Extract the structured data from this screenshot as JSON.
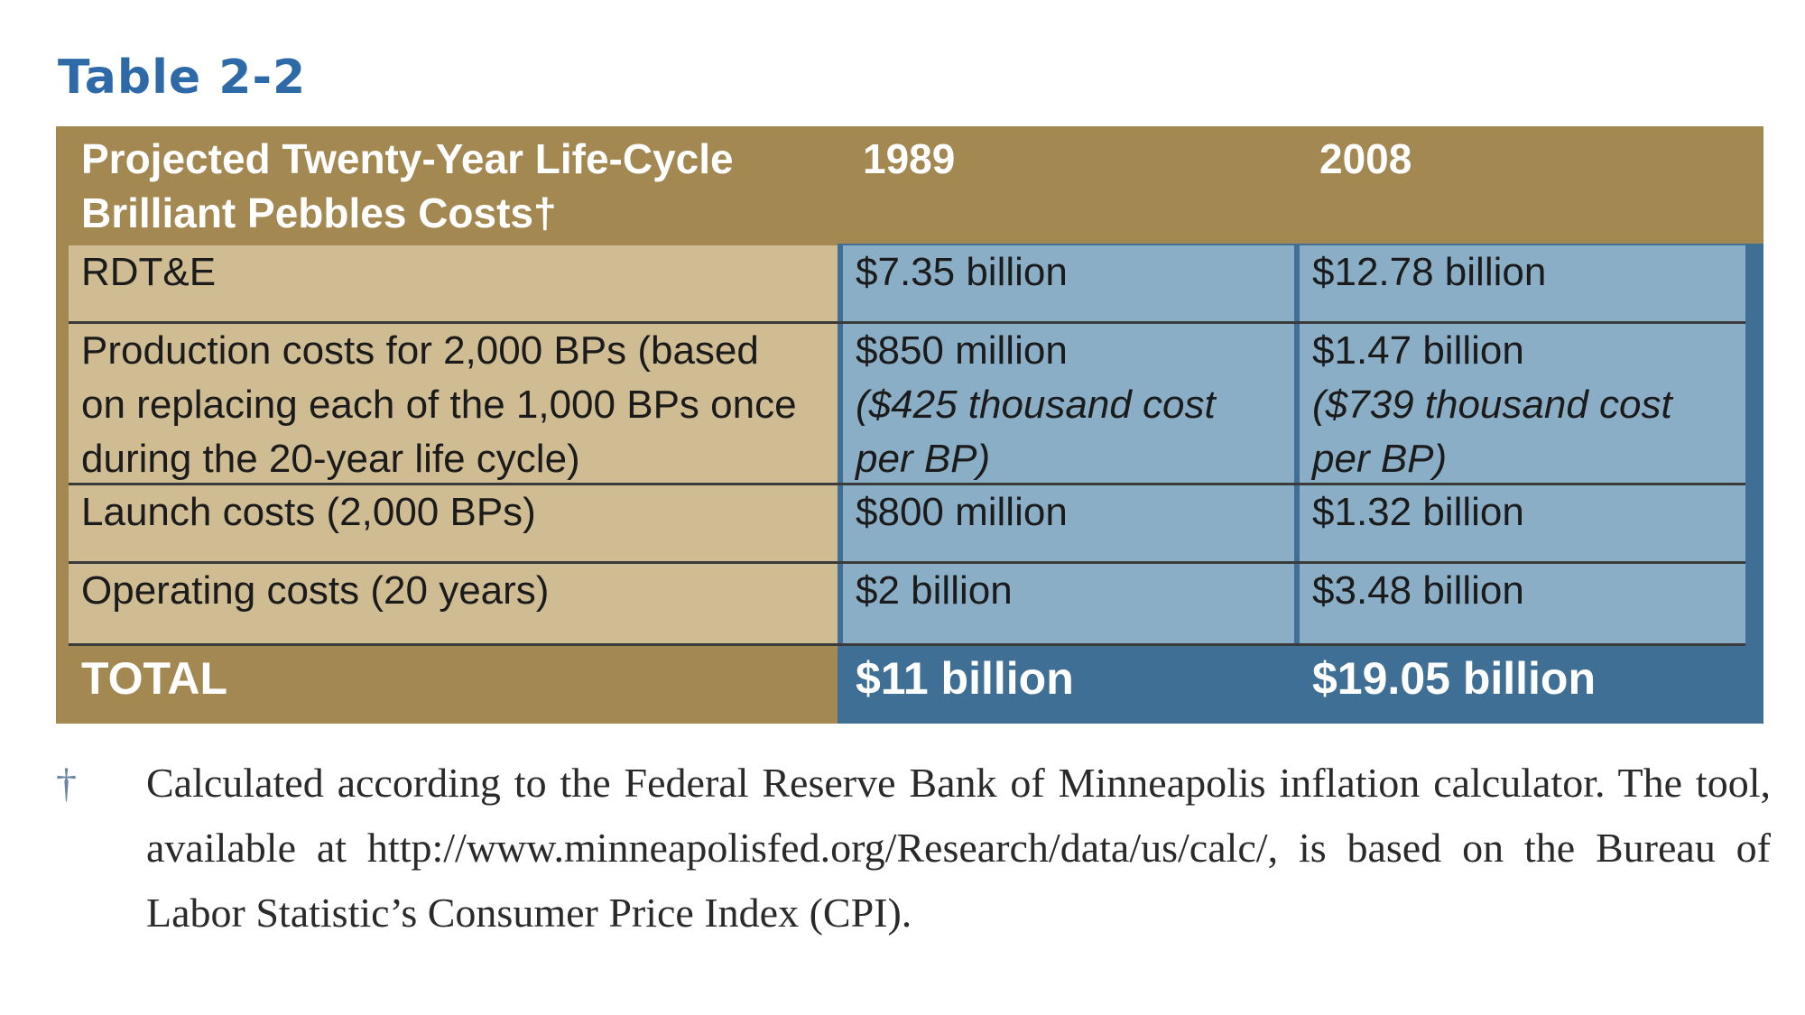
{
  "table_label": "Table 2-2",
  "header": {
    "title_line1": "Projected Twenty-Year Life-Cycle",
    "title_line2": "Brilliant Pebbles Costs†",
    "col_1989": "1989",
    "col_2008": "2008"
  },
  "rows": [
    {
      "label_lines": [
        "RDT&E"
      ],
      "v1989_lines": [
        "$7.35 billion"
      ],
      "v2008_lines": [
        "$12.78 billion"
      ]
    },
    {
      "label_lines": [
        "Production costs for 2,000 BPs (based",
        "on replacing each of the 1,000 BPs once",
        "during the 20-year life cycle)"
      ],
      "v1989_lines": [
        "$850 million",
        "($425 thousand cost",
        "per BP)"
      ],
      "v2008_lines": [
        "$1.47 billion",
        "($739 thousand cost",
        "per BP)"
      ]
    },
    {
      "label_lines": [
        "Launch costs (2,000 BPs)"
      ],
      "v1989_lines": [
        "$800 million"
      ],
      "v2008_lines": [
        "$1.32 billion"
      ]
    },
    {
      "label_lines": [
        "Operating costs (20 years)"
      ],
      "v1989_lines": [
        "$2 billion"
      ],
      "v2008_lines": [
        "$3.48 billion"
      ]
    }
  ],
  "total": {
    "label": "TOTAL",
    "v1989": "$11 billion",
    "v2008": "$19.05 billion"
  },
  "footnote": {
    "marker": "†",
    "text": "Calculated according to the Federal Reserve Bank of Minneapolis inflation calculator. The tool, available at http://www.minneapolisfed.org/Research/data/us/calc/, is based on the Bureau of Labor Statistic’s Consumer Price Index (CPI)."
  },
  "colors": {
    "label_blue": "#2e6aa8",
    "header_gold": "#a38852",
    "tan_cell": "#d0bc92",
    "blue_cell": "#8aaec6",
    "dark_blue": "#3f6f94"
  }
}
